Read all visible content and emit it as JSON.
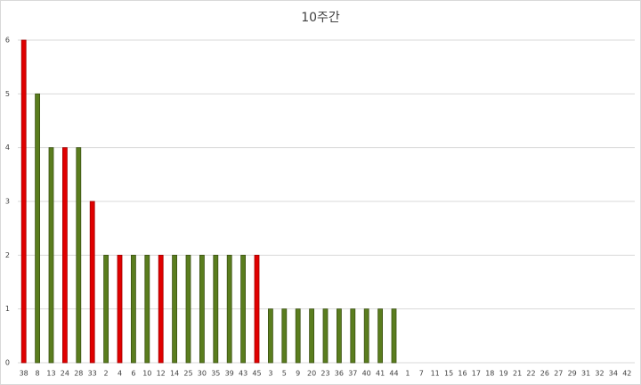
{
  "chart_data": {
    "type": "bar",
    "title": "10주간",
    "categories": [
      "38",
      "8",
      "13",
      "24",
      "28",
      "33",
      "2",
      "4",
      "6",
      "10",
      "12",
      "14",
      "25",
      "30",
      "35",
      "39",
      "43",
      "45",
      "3",
      "5",
      "9",
      "20",
      "23",
      "36",
      "37",
      "40",
      "41",
      "44",
      "1",
      "7",
      "11",
      "15",
      "16",
      "17",
      "18",
      "19",
      "21",
      "22",
      "26",
      "27",
      "29",
      "31",
      "32",
      "34",
      "42"
    ],
    "values": [
      6,
      5,
      4,
      4,
      4,
      3,
      2,
      2,
      2,
      2,
      2,
      2,
      2,
      2,
      2,
      2,
      2,
      2,
      1,
      1,
      1,
      1,
      1,
      1,
      1,
      1,
      1,
      1,
      0,
      0,
      0,
      0,
      0,
      0,
      0,
      0,
      0,
      0,
      0,
      0,
      0,
      0,
      0,
      0,
      0
    ],
    "colors": [
      "#e00000",
      "#5a7d1e",
      "#5a7d1e",
      "#e00000",
      "#5a7d1e",
      "#e00000",
      "#5a7d1e",
      "#e00000",
      "#5a7d1e",
      "#5a7d1e",
      "#e00000",
      "#5a7d1e",
      "#5a7d1e",
      "#5a7d1e",
      "#5a7d1e",
      "#5a7d1e",
      "#5a7d1e",
      "#e00000",
      "#5a7d1e",
      "#5a7d1e",
      "#5a7d1e",
      "#5a7d1e",
      "#5a7d1e",
      "#5a7d1e",
      "#5a7d1e",
      "#5a7d1e",
      "#5a7d1e",
      "#5a7d1e",
      "#5a7d1e",
      "#5a7d1e",
      "#5a7d1e",
      "#5a7d1e",
      "#5a7d1e",
      "#5a7d1e",
      "#5a7d1e",
      "#5a7d1e",
      "#5a7d1e",
      "#5a7d1e",
      "#5a7d1e",
      "#5a7d1e",
      "#5a7d1e",
      "#5a7d1e",
      "#5a7d1e",
      "#5a7d1e",
      "#5a7d1e"
    ],
    "ylim": [
      0,
      6
    ],
    "yticks": [
      0,
      1,
      2,
      3,
      4,
      5,
      6
    ],
    "grid": true
  }
}
